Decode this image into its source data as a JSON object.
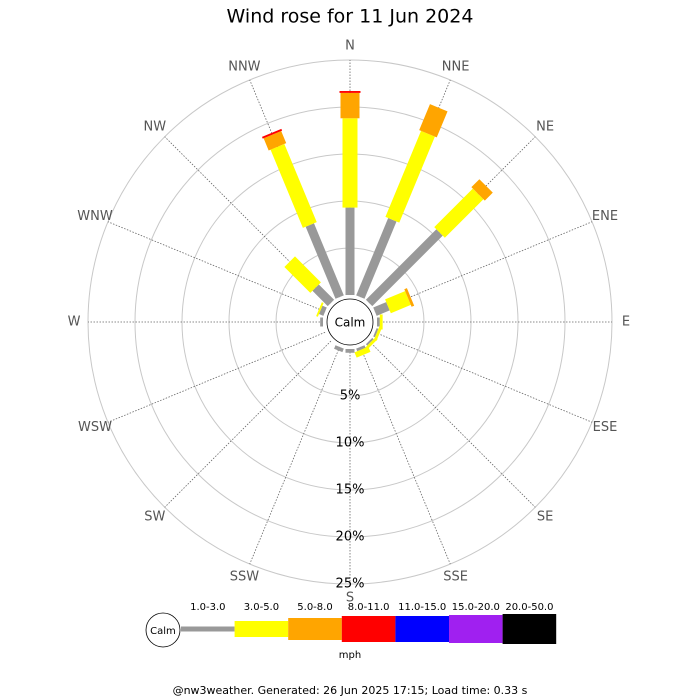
{
  "chart_data": {
    "type": "wind-rose",
    "title": "Wind rose for 11 Jun 2024",
    "categories": [
      "N",
      "NNE",
      "NE",
      "ENE",
      "E",
      "ESE",
      "SE",
      "SSE",
      "S",
      "SSW",
      "SW",
      "WSW",
      "W",
      "WNW",
      "NW",
      "NNW"
    ],
    "series": [
      {
        "name": "1.0-3.0",
        "color": "#999999",
        "values": [
          9.3,
          8.9,
          10.6,
          1.5,
          0.3,
          0.2,
          0.2,
          0.3,
          0.4,
          0.4,
          0,
          0,
          0.3,
          0.5,
          2.3,
          8.3
        ]
      },
      {
        "name": "3.0-5.0",
        "color": "#ffff00",
        "values": [
          9.5,
          9.9,
          5.8,
          2.3,
          0.3,
          0.3,
          0.3,
          0.6,
          0,
          0,
          0,
          0,
          0,
          0.2,
          3.9,
          9.0
        ]
      },
      {
        "name": "5.0-8.0",
        "color": "#ffa500",
        "values": [
          2.7,
          3.0,
          1.2,
          0.3,
          0,
          0,
          0,
          0,
          0,
          0,
          0,
          0,
          0,
          0,
          0,
          1.4
        ]
      },
      {
        "name": "8.0-11.0",
        "color": "#ff0000",
        "values": [
          0.2,
          0,
          0,
          0,
          0,
          0,
          0,
          0,
          0,
          0,
          0,
          0,
          0,
          0,
          0,
          0.2
        ]
      },
      {
        "name": "11.0-15.0",
        "color": "#0000ff",
        "values": [
          0,
          0,
          0,
          0,
          0,
          0,
          0,
          0,
          0,
          0,
          0,
          0,
          0,
          0,
          0,
          0
        ]
      },
      {
        "name": "15.0-20.0",
        "color": "#a020f0",
        "values": [
          0,
          0,
          0,
          0,
          0,
          0,
          0,
          0,
          0,
          0,
          0,
          0,
          0,
          0,
          0,
          0
        ]
      },
      {
        "name": "20.0-50.0",
        "color": "#000000",
        "values": [
          0,
          0,
          0,
          0,
          0,
          0,
          0,
          0,
          0,
          0,
          0,
          0,
          0,
          0,
          0,
          0
        ]
      }
    ],
    "rlim": [
      0,
      25
    ],
    "rticks": [
      {
        "value": 5,
        "label": "5%"
      },
      {
        "value": 10,
        "label": "10%"
      },
      {
        "value": 15,
        "label": "15%"
      },
      {
        "value": 20,
        "label": "20%"
      },
      {
        "value": 25,
        "label": "25%"
      }
    ],
    "calm_label": "Calm",
    "unit": "mph"
  },
  "footer": "@nw3weather. Generated: 26 Jun 2025 17:15; Load time: 0.33 s"
}
